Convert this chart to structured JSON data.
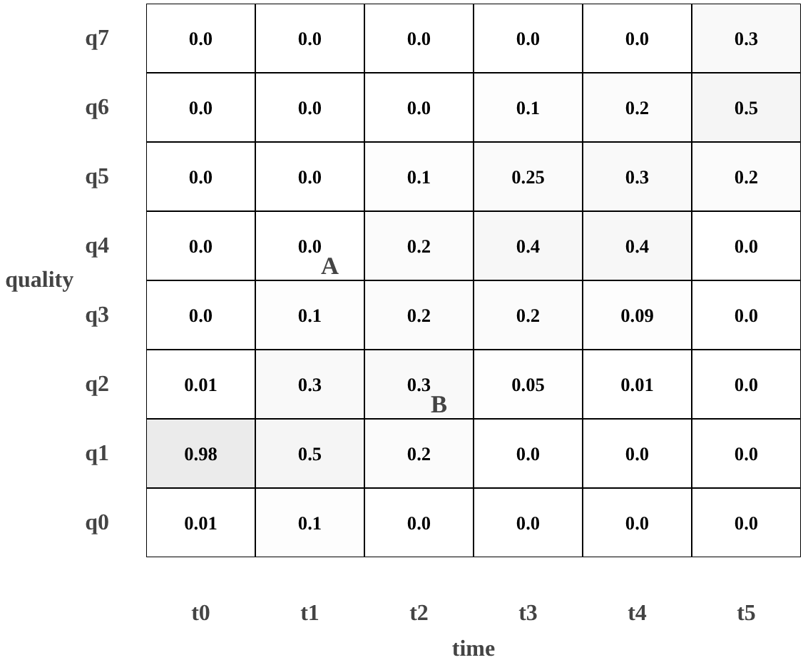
{
  "chart_data": {
    "type": "heatmap",
    "xlabel": "time",
    "ylabel": "quality",
    "categories": [
      "t0",
      "t1",
      "t2",
      "t3",
      "t4",
      "t5"
    ],
    "y_categories": [
      "q7",
      "q6",
      "q5",
      "q4",
      "q3",
      "q2",
      "q1",
      "q0"
    ],
    "cells": [
      [
        0.0,
        0.0,
        0.0,
        0.0,
        0.0,
        0.3
      ],
      [
        0.0,
        0.0,
        0.0,
        0.1,
        0.2,
        0.5
      ],
      [
        0.0,
        0.0,
        0.1,
        0.25,
        0.3,
        0.2
      ],
      [
        0.0,
        0.0,
        0.2,
        0.4,
        0.4,
        0.0
      ],
      [
        0.0,
        0.1,
        0.2,
        0.2,
        0.09,
        0.0
      ],
      [
        0.01,
        0.3,
        0.3,
        0.05,
        0.01,
        0.0
      ],
      [
        0.98,
        0.5,
        0.2,
        0.0,
        0.0,
        0.0
      ],
      [
        0.01,
        0.1,
        0.0,
        0.0,
        0.0,
        0.0
      ]
    ],
    "cell_labels": [
      [
        "0.0",
        "0.0",
        "0.0",
        "0.0",
        "0.0",
        "0.3"
      ],
      [
        "0.0",
        "0.0",
        "0.0",
        "0.1",
        "0.2",
        "0.5"
      ],
      [
        "0.0",
        "0.0",
        "0.1",
        "0.25",
        "0.3",
        "0.2"
      ],
      [
        "0.0",
        "0.0",
        "0.2",
        "0.4",
        "0.4",
        "0.0"
      ],
      [
        "0.0",
        "0.1",
        "0.2",
        "0.2",
        "0.09",
        "0.0"
      ],
      [
        "0.01",
        "0.3",
        "0.3",
        "0.05",
        "0.01",
        "0.0"
      ],
      [
        "0.98",
        "0.5",
        "0.2",
        "0.0",
        "0.0",
        "0.0"
      ],
      [
        "0.01",
        "0.1",
        "0.0",
        "0.0",
        "0.0",
        "0.0"
      ]
    ],
    "annotations": [
      "A",
      "B"
    ]
  }
}
